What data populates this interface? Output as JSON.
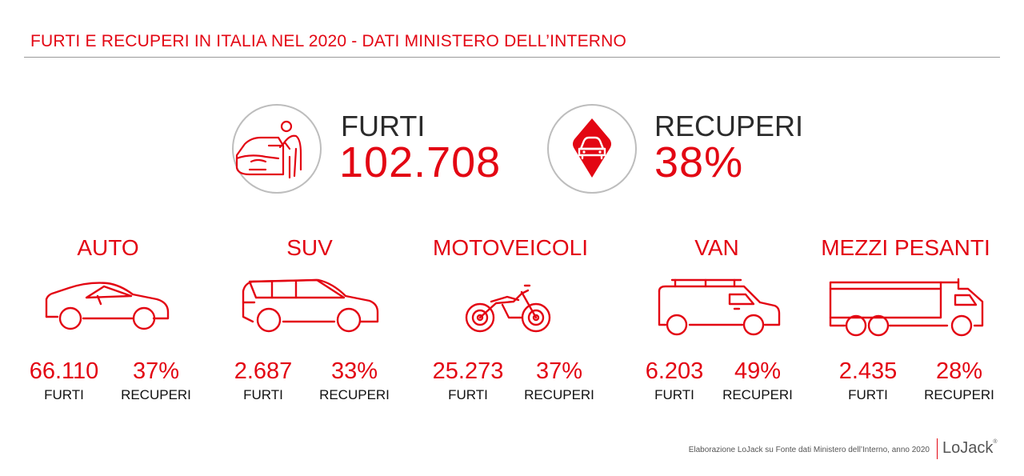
{
  "header": {
    "title": "FURTI E RECUPERI IN ITALIA NEL 2020 - DATI MINISTERO DELL’INTERNO"
  },
  "colors": {
    "accent": "#e30613",
    "text": "#111111",
    "circle_border": "#bdbdbd",
    "rule": "#9a9a9a"
  },
  "hero": {
    "furti": {
      "label": "FURTI",
      "value": "102.708",
      "icon": "car-thief-icon"
    },
    "recuperi": {
      "label": "RECUPERI",
      "value": "38%",
      "icon": "car-location-pin-icon"
    }
  },
  "categories": [
    {
      "title": "AUTO",
      "icon": "car-icon",
      "furti_value": "66.110",
      "furti_label": "FURTI",
      "recuperi_value": "37%",
      "recuperi_label": "RECUPERI"
    },
    {
      "title": "SUV",
      "icon": "suv-icon",
      "furti_value": "2.687",
      "furti_label": "FURTI",
      "recuperi_value": "33%",
      "recuperi_label": "RECUPERI"
    },
    {
      "title": "MOTOVEICOLI",
      "icon": "motorcycle-icon",
      "furti_value": "25.273",
      "furti_label": "FURTI",
      "recuperi_value": "37%",
      "recuperi_label": "RECUPERI"
    },
    {
      "title": "VAN",
      "icon": "van-icon",
      "furti_value": "6.203",
      "furti_label": "FURTI",
      "recuperi_value": "49%",
      "recuperi_label": "RECUPERI"
    },
    {
      "title": "MEZZI PESANTI",
      "icon": "truck-icon",
      "furti_value": "2.435",
      "furti_label": "FURTI",
      "recuperi_value": "28%",
      "recuperi_label": "RECUPERI"
    }
  ],
  "footer": {
    "note": "Elaborazione LoJack su Fonte dati Ministero dell’Interno, anno 2020",
    "logo": "LoJack"
  }
}
